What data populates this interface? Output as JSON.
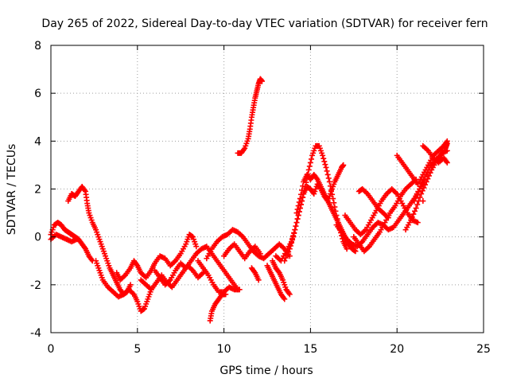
{
  "chart_data": {
    "type": "scatter",
    "title": "Day 265 of 2022, Sidereal Day-to-day VTEC variation (SDTVAR) for receiver fern",
    "xlabel": "GPS time / hours",
    "ylabel": "SDTVAR / TECUs",
    "xlim": [
      0,
      25
    ],
    "ylim": [
      -4,
      8
    ],
    "xticks": [
      0,
      5,
      10,
      15,
      20,
      25
    ],
    "yticks": [
      -4,
      -2,
      0,
      2,
      4,
      6,
      8
    ],
    "grid": true,
    "marker": "+",
    "series": [
      {
        "name": "SDTVAR",
        "color": "#ff0000",
        "points": [
          [
            0.0,
            0.1
          ],
          [
            0.2,
            0.5
          ],
          [
            0.4,
            0.6
          ],
          [
            0.6,
            0.5
          ],
          [
            0.8,
            0.3
          ],
          [
            1.0,
            0.2
          ],
          [
            1.2,
            0.1
          ],
          [
            1.4,
            0.0
          ],
          [
            1.6,
            -0.1
          ],
          [
            1.8,
            -0.3
          ],
          [
            2.0,
            -0.5
          ],
          [
            2.2,
            -0.8
          ],
          [
            2.4,
            -1.0
          ],
          [
            0.0,
            -0.1
          ],
          [
            0.3,
            0.1
          ],
          [
            0.6,
            0.0
          ],
          [
            0.9,
            -0.1
          ],
          [
            1.2,
            -0.2
          ],
          [
            1.5,
            -0.1
          ],
          [
            1.0,
            1.5
          ],
          [
            1.2,
            1.8
          ],
          [
            1.4,
            1.7
          ],
          [
            1.6,
            1.9
          ],
          [
            1.8,
            2.1
          ],
          [
            2.0,
            1.9
          ],
          [
            2.1,
            1.4
          ],
          [
            2.2,
            1.0
          ],
          [
            2.4,
            0.6
          ],
          [
            2.6,
            0.3
          ],
          [
            2.8,
            -0.1
          ],
          [
            3.0,
            -0.5
          ],
          [
            3.2,
            -0.9
          ],
          [
            3.4,
            -1.3
          ],
          [
            3.6,
            -1.6
          ],
          [
            3.8,
            -1.9
          ],
          [
            4.0,
            -2.2
          ],
          [
            4.2,
            -2.4
          ],
          [
            4.4,
            -2.3
          ],
          [
            4.6,
            -2.0
          ],
          [
            2.6,
            -1.0
          ],
          [
            2.8,
            -1.4
          ],
          [
            3.0,
            -1.8
          ],
          [
            3.3,
            -2.1
          ],
          [
            3.6,
            -2.3
          ],
          [
            3.9,
            -2.5
          ],
          [
            4.2,
            -2.4
          ],
          [
            4.5,
            -2.2
          ],
          [
            4.8,
            -2.4
          ],
          [
            5.0,
            -2.7
          ],
          [
            5.2,
            -3.1
          ],
          [
            5.4,
            -3.0
          ],
          [
            5.6,
            -2.6
          ],
          [
            5.8,
            -2.2
          ],
          [
            3.8,
            -1.5
          ],
          [
            4.0,
            -1.8
          ],
          [
            4.3,
            -1.6
          ],
          [
            4.6,
            -1.3
          ],
          [
            4.8,
            -1.0
          ],
          [
            5.0,
            -1.2
          ],
          [
            5.2,
            -1.5
          ],
          [
            5.5,
            -1.7
          ],
          [
            5.8,
            -1.4
          ],
          [
            6.0,
            -1.1
          ],
          [
            6.3,
            -0.8
          ],
          [
            6.6,
            -0.9
          ],
          [
            6.9,
            -1.2
          ],
          [
            7.2,
            -1.0
          ],
          [
            7.5,
            -0.7
          ],
          [
            7.8,
            -0.3
          ],
          [
            8.0,
            0.1
          ],
          [
            8.2,
            0.0
          ],
          [
            8.4,
            -0.4
          ],
          [
            5.2,
            -1.8
          ],
          [
            5.5,
            -2.0
          ],
          [
            5.8,
            -2.2
          ],
          [
            6.1,
            -1.9
          ],
          [
            6.4,
            -1.6
          ],
          [
            6.7,
            -1.9
          ],
          [
            7.0,
            -2.1
          ],
          [
            7.3,
            -1.8
          ],
          [
            7.6,
            -1.5
          ],
          [
            7.9,
            -1.2
          ],
          [
            8.2,
            -1.4
          ],
          [
            8.5,
            -1.7
          ],
          [
            8.8,
            -1.5
          ],
          [
            6.0,
            -1.4
          ],
          [
            6.3,
            -1.7
          ],
          [
            6.6,
            -2.0
          ],
          [
            6.9,
            -1.8
          ],
          [
            7.2,
            -1.4
          ],
          [
            7.5,
            -1.1
          ],
          [
            7.8,
            -1.3
          ],
          [
            8.1,
            -1.0
          ],
          [
            8.4,
            -0.7
          ],
          [
            8.7,
            -0.5
          ],
          [
            9.0,
            -0.4
          ],
          [
            9.3,
            -0.7
          ],
          [
            9.6,
            -1.0
          ],
          [
            9.9,
            -1.3
          ],
          [
            10.2,
            -1.6
          ],
          [
            10.5,
            -1.9
          ],
          [
            10.8,
            -2.2
          ],
          [
            8.5,
            -1.0
          ],
          [
            8.8,
            -1.3
          ],
          [
            9.1,
            -1.6
          ],
          [
            9.4,
            -2.0
          ],
          [
            9.7,
            -2.3
          ],
          [
            10.0,
            -2.3
          ],
          [
            10.3,
            -2.1
          ],
          [
            10.6,
            -2.2
          ],
          [
            10.9,
            -2.2
          ],
          [
            9.2,
            -3.5
          ],
          [
            9.3,
            -3.1
          ],
          [
            9.5,
            -2.8
          ],
          [
            9.7,
            -2.6
          ],
          [
            9.9,
            -2.4
          ],
          [
            10.1,
            -2.4
          ],
          [
            9.0,
            -0.9
          ],
          [
            9.3,
            -0.5
          ],
          [
            9.6,
            -0.2
          ],
          [
            9.9,
            0.0
          ],
          [
            10.2,
            0.1
          ],
          [
            10.5,
            0.3
          ],
          [
            10.8,
            0.2
          ],
          [
            11.1,
            0.0
          ],
          [
            11.4,
            -0.3
          ],
          [
            11.7,
            -0.6
          ],
          [
            12.0,
            -0.8
          ],
          [
            12.3,
            -0.9
          ],
          [
            12.6,
            -0.7
          ],
          [
            12.9,
            -0.5
          ],
          [
            13.2,
            -0.3
          ],
          [
            13.5,
            -0.5
          ],
          [
            13.8,
            -0.8
          ],
          [
            10.0,
            -0.8
          ],
          [
            10.3,
            -0.5
          ],
          [
            10.6,
            -0.3
          ],
          [
            10.9,
            -0.6
          ],
          [
            11.2,
            -0.9
          ],
          [
            11.5,
            -0.6
          ],
          [
            11.8,
            -0.4
          ],
          [
            12.1,
            -0.7
          ],
          [
            10.8,
            3.5
          ],
          [
            11.0,
            3.5
          ],
          [
            11.2,
            3.7
          ],
          [
            11.4,
            4.1
          ],
          [
            11.5,
            4.5
          ],
          [
            11.6,
            5.0
          ],
          [
            11.7,
            5.4
          ],
          [
            11.8,
            5.8
          ],
          [
            11.9,
            6.1
          ],
          [
            12.0,
            6.4
          ],
          [
            12.1,
            6.6
          ],
          [
            12.2,
            6.5
          ],
          [
            11.6,
            -1.3
          ],
          [
            11.8,
            -1.5
          ],
          [
            12.0,
            -1.8
          ],
          [
            12.8,
            -1.0
          ],
          [
            13.0,
            -1.3
          ],
          [
            13.2,
            -1.5
          ],
          [
            13.4,
            -1.8
          ],
          [
            13.6,
            -2.2
          ],
          [
            13.8,
            -2.4
          ],
          [
            12.5,
            -1.2
          ],
          [
            12.7,
            -1.5
          ],
          [
            12.9,
            -1.8
          ],
          [
            13.1,
            -2.1
          ],
          [
            13.3,
            -2.4
          ],
          [
            13.5,
            -2.6
          ],
          [
            13.0,
            -0.8
          ],
          [
            13.3,
            -1.0
          ],
          [
            13.6,
            -0.6
          ],
          [
            13.9,
            -0.2
          ],
          [
            14.1,
            0.3
          ],
          [
            14.3,
            0.9
          ],
          [
            14.5,
            1.5
          ],
          [
            14.7,
            2.1
          ],
          [
            14.9,
            2.8
          ],
          [
            15.1,
            3.4
          ],
          [
            15.3,
            3.8
          ],
          [
            15.5,
            3.8
          ],
          [
            15.7,
            3.4
          ],
          [
            15.9,
            2.9
          ],
          [
            16.1,
            2.3
          ],
          [
            16.3,
            1.6
          ],
          [
            16.5,
            0.9
          ],
          [
            16.7,
            0.3
          ],
          [
            16.9,
            -0.2
          ],
          [
            17.1,
            -0.5
          ],
          [
            13.5,
            -1.0
          ],
          [
            13.8,
            -0.5
          ],
          [
            14.0,
            0.0
          ],
          [
            14.2,
            0.6
          ],
          [
            14.4,
            1.2
          ],
          [
            14.6,
            1.8
          ],
          [
            14.8,
            2.1
          ],
          [
            15.0,
            2.0
          ],
          [
            15.2,
            1.8
          ],
          [
            15.4,
            2.2
          ],
          [
            15.6,
            2.0
          ],
          [
            15.8,
            1.7
          ],
          [
            16.0,
            1.5
          ],
          [
            16.2,
            1.9
          ],
          [
            16.4,
            2.3
          ],
          [
            16.6,
            2.6
          ],
          [
            16.8,
            2.9
          ],
          [
            16.9,
            3.0
          ],
          [
            14.2,
            1.0
          ],
          [
            14.4,
            1.6
          ],
          [
            14.6,
            2.3
          ],
          [
            14.8,
            2.6
          ],
          [
            15.0,
            2.4
          ],
          [
            15.2,
            2.6
          ],
          [
            15.4,
            2.4
          ],
          [
            15.6,
            2.1
          ],
          [
            15.8,
            1.8
          ],
          [
            16.0,
            1.5
          ],
          [
            16.2,
            1.2
          ],
          [
            16.4,
            0.9
          ],
          [
            16.6,
            0.6
          ],
          [
            16.8,
            0.3
          ],
          [
            17.0,
            0.0
          ],
          [
            17.2,
            -0.3
          ],
          [
            17.4,
            -0.5
          ],
          [
            17.6,
            -0.6
          ],
          [
            16.5,
            0.5
          ],
          [
            16.8,
            0.2
          ],
          [
            17.1,
            -0.1
          ],
          [
            17.4,
            -0.3
          ],
          [
            17.7,
            -0.4
          ],
          [
            18.0,
            -0.2
          ],
          [
            18.3,
            0.1
          ],
          [
            18.6,
            0.4
          ],
          [
            18.9,
            0.6
          ],
          [
            19.2,
            0.5
          ],
          [
            19.5,
            0.3
          ],
          [
            19.8,
            0.4
          ],
          [
            20.1,
            0.7
          ],
          [
            20.4,
            1.0
          ],
          [
            20.7,
            1.3
          ],
          [
            21.0,
            1.6
          ],
          [
            21.3,
            2.0
          ],
          [
            21.6,
            2.4
          ],
          [
            17.0,
            0.9
          ],
          [
            17.3,
            0.6
          ],
          [
            17.6,
            0.3
          ],
          [
            17.9,
            0.1
          ],
          [
            18.2,
            0.3
          ],
          [
            18.5,
            0.7
          ],
          [
            18.8,
            1.1
          ],
          [
            19.1,
            1.5
          ],
          [
            19.4,
            1.8
          ],
          [
            19.7,
            2.0
          ],
          [
            20.0,
            1.8
          ],
          [
            20.3,
            1.4
          ],
          [
            20.6,
            1.0
          ],
          [
            20.9,
            0.7
          ],
          [
            21.2,
            0.6
          ],
          [
            17.5,
            0.0
          ],
          [
            17.8,
            -0.3
          ],
          [
            18.1,
            -0.6
          ],
          [
            18.4,
            -0.4
          ],
          [
            18.7,
            -0.1
          ],
          [
            19.0,
            0.2
          ],
          [
            19.3,
            0.6
          ],
          [
            19.6,
            1.0
          ],
          [
            19.9,
            1.3
          ],
          [
            20.2,
            1.7
          ],
          [
            20.5,
            2.0
          ],
          [
            20.8,
            2.2
          ],
          [
            21.1,
            2.4
          ],
          [
            17.8,
            1.9
          ],
          [
            18.0,
            2.0
          ],
          [
            18.3,
            1.8
          ],
          [
            18.6,
            1.5
          ],
          [
            18.9,
            1.2
          ],
          [
            19.2,
            1.0
          ],
          [
            19.5,
            0.8
          ],
          [
            20.0,
            3.4
          ],
          [
            20.3,
            3.1
          ],
          [
            20.6,
            2.8
          ],
          [
            20.9,
            2.5
          ],
          [
            21.2,
            2.2
          ],
          [
            21.5,
            2.6
          ],
          [
            21.8,
            3.0
          ],
          [
            22.1,
            3.4
          ],
          [
            22.4,
            3.6
          ],
          [
            22.7,
            3.8
          ],
          [
            22.9,
            4.0
          ],
          [
            21.0,
            1.5
          ],
          [
            21.3,
            2.0
          ],
          [
            21.6,
            2.5
          ],
          [
            21.9,
            2.9
          ],
          [
            22.2,
            3.2
          ],
          [
            22.5,
            3.4
          ],
          [
            22.8,
            3.7
          ],
          [
            22.9,
            3.9
          ],
          [
            20.5,
            0.3
          ],
          [
            20.8,
            0.7
          ],
          [
            21.1,
            1.2
          ],
          [
            21.4,
            1.8
          ],
          [
            21.7,
            2.3
          ],
          [
            22.0,
            2.8
          ],
          [
            22.3,
            3.2
          ],
          [
            22.6,
            3.5
          ],
          [
            22.9,
            3.6
          ],
          [
            21.5,
            3.8
          ],
          [
            21.8,
            3.6
          ],
          [
            22.1,
            3.3
          ],
          [
            22.4,
            3.1
          ],
          [
            22.7,
            3.3
          ],
          [
            22.9,
            3.1
          ],
          [
            21.5,
            1.5
          ]
        ]
      }
    ]
  }
}
